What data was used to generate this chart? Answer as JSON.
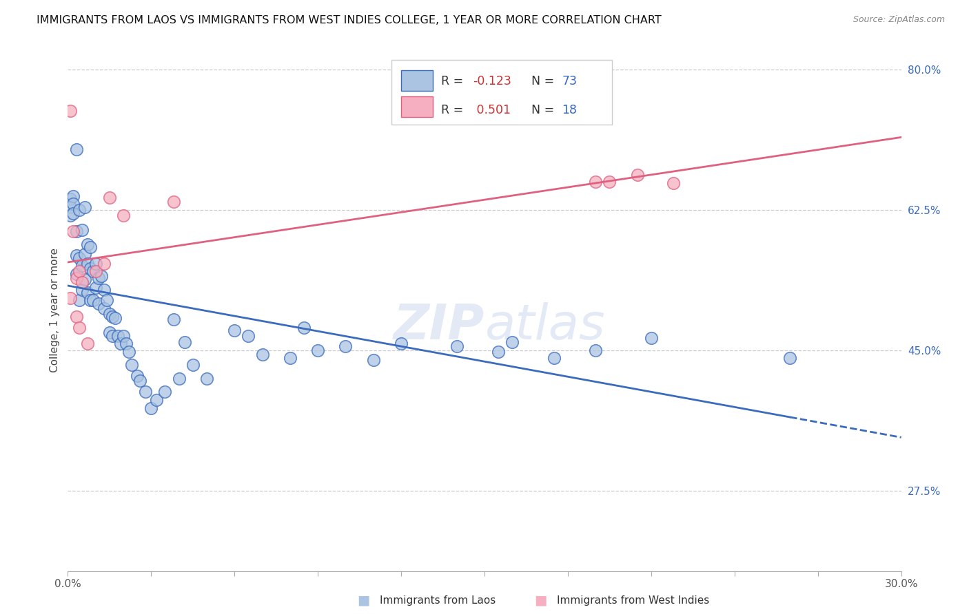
{
  "title": "IMMIGRANTS FROM LAOS VS IMMIGRANTS FROM WEST INDIES COLLEGE, 1 YEAR OR MORE CORRELATION CHART",
  "source_text": "Source: ZipAtlas.com",
  "ylabel": "College, 1 year or more",
  "xlim": [
    0.0,
    0.3
  ],
  "ylim": [
    0.175,
    0.825
  ],
  "ytick_labels_right": [
    "80.0%",
    "62.5%",
    "45.0%",
    "27.5%"
  ],
  "ytick_positions_right": [
    0.8,
    0.625,
    0.45,
    0.275
  ],
  "grid_yticks": [
    0.8,
    0.625,
    0.45,
    0.275
  ],
  "legend_r_blue": "R = -0.123",
  "legend_n_blue": "N = 73",
  "legend_r_pink": "R =  0.501",
  "legend_n_pink": "N = 18",
  "color_blue": "#aac4e2",
  "color_pink": "#f5afc0",
  "line_color_blue": "#3a6bbd",
  "line_color_pink": "#e06080",
  "watermark": "ZIPatlas",
  "blue_scatter_x": [
    0.001,
    0.001,
    0.001,
    0.002,
    0.002,
    0.002,
    0.003,
    0.003,
    0.003,
    0.003,
    0.004,
    0.004,
    0.004,
    0.005,
    0.005,
    0.005,
    0.006,
    0.006,
    0.006,
    0.007,
    0.007,
    0.007,
    0.008,
    0.008,
    0.008,
    0.009,
    0.009,
    0.01,
    0.01,
    0.011,
    0.011,
    0.012,
    0.013,
    0.013,
    0.014,
    0.015,
    0.015,
    0.016,
    0.016,
    0.017,
    0.018,
    0.019,
    0.02,
    0.021,
    0.022,
    0.023,
    0.025,
    0.026,
    0.028,
    0.03,
    0.032,
    0.035,
    0.038,
    0.04,
    0.042,
    0.045,
    0.05,
    0.06,
    0.065,
    0.07,
    0.08,
    0.085,
    0.09,
    0.1,
    0.11,
    0.12,
    0.14,
    0.155,
    0.16,
    0.175,
    0.19,
    0.21,
    0.26
  ],
  "blue_scatter_y": [
    0.638,
    0.628,
    0.618,
    0.642,
    0.632,
    0.62,
    0.7,
    0.598,
    0.568,
    0.545,
    0.625,
    0.565,
    0.512,
    0.6,
    0.555,
    0.525,
    0.628,
    0.57,
    0.538,
    0.582,
    0.558,
    0.522,
    0.578,
    0.552,
    0.512,
    0.548,
    0.512,
    0.558,
    0.528,
    0.54,
    0.508,
    0.542,
    0.525,
    0.502,
    0.512,
    0.495,
    0.472,
    0.492,
    0.468,
    0.49,
    0.468,
    0.458,
    0.468,
    0.458,
    0.448,
    0.432,
    0.418,
    0.412,
    0.398,
    0.378,
    0.388,
    0.398,
    0.488,
    0.415,
    0.46,
    0.432,
    0.415,
    0.475,
    0.468,
    0.445,
    0.44,
    0.478,
    0.45,
    0.455,
    0.438,
    0.458,
    0.455,
    0.448,
    0.46,
    0.44,
    0.45,
    0.465,
    0.44
  ],
  "pink_scatter_x": [
    0.001,
    0.001,
    0.002,
    0.003,
    0.003,
    0.004,
    0.004,
    0.005,
    0.007,
    0.01,
    0.013,
    0.015,
    0.02,
    0.038,
    0.19,
    0.195,
    0.205,
    0.218
  ],
  "pink_scatter_y": [
    0.748,
    0.515,
    0.598,
    0.54,
    0.492,
    0.548,
    0.478,
    0.535,
    0.458,
    0.548,
    0.558,
    0.64,
    0.618,
    0.635,
    0.66,
    0.66,
    0.668,
    0.658
  ]
}
